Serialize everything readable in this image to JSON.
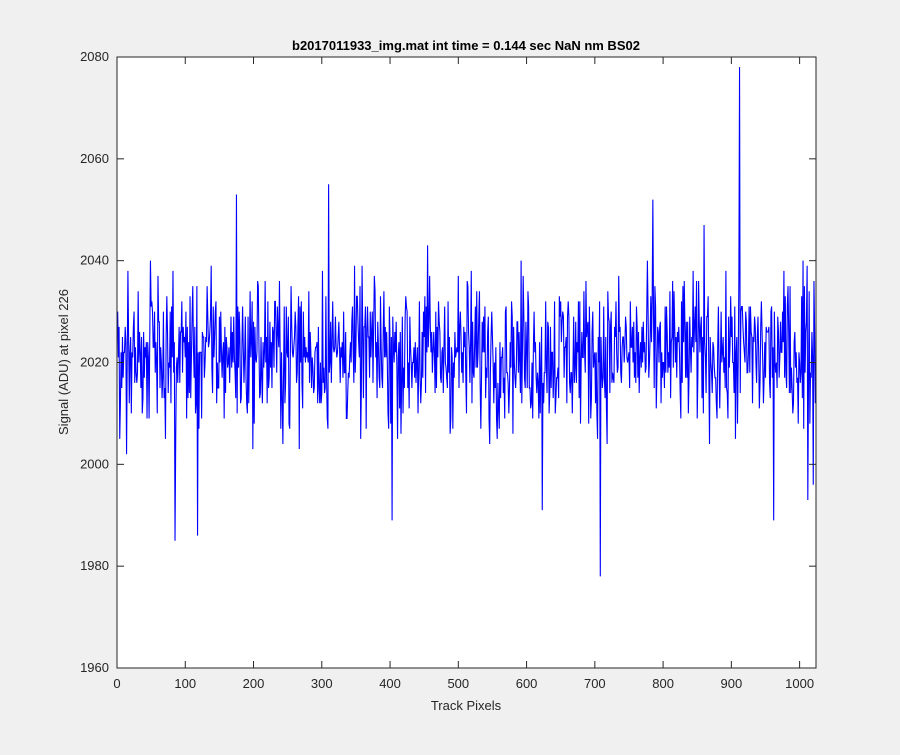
{
  "chart_data": {
    "type": "line",
    "title": "b2017011933_img.mat int time = 0.144 sec  NaN nm BS02",
    "xlabel": "Track Pixels",
    "ylabel": "Signal (ADU) at pixel 226",
    "xlim": [
      0,
      1024
    ],
    "ylim": [
      1960,
      2080
    ],
    "xticks": [
      0,
      100,
      200,
      300,
      400,
      500,
      600,
      700,
      800,
      900,
      1000
    ],
    "yticks": [
      1960,
      1980,
      2000,
      2020,
      2040,
      2060,
      2080
    ],
    "xtick_labels": [
      "0",
      "100",
      "200",
      "300",
      "400",
      "500",
      "600",
      "700",
      "800",
      "900",
      "1000"
    ],
    "ytick_labels": [
      "1960",
      "1980",
      "2000",
      "2020",
      "2040",
      "2060",
      "2080"
    ],
    "grid": false,
    "line_color": "#0000ff",
    "n_points": 1024,
    "mean_level": 2022,
    "noise_range": [
      2000,
      2040
    ],
    "notable_points": [
      {
        "x": 85,
        "y": 1985
      },
      {
        "x": 118,
        "y": 1986
      },
      {
        "x": 175,
        "y": 2053
      },
      {
        "x": 310,
        "y": 2055
      },
      {
        "x": 403,
        "y": 1989
      },
      {
        "x": 455,
        "y": 2043
      },
      {
        "x": 623,
        "y": 1991
      },
      {
        "x": 708,
        "y": 1978
      },
      {
        "x": 785,
        "y": 2052
      },
      {
        "x": 860,
        "y": 2047
      },
      {
        "x": 912,
        "y": 2078
      },
      {
        "x": 962,
        "y": 1989
      },
      {
        "x": 1005,
        "y": 2040
      },
      {
        "x": 1012,
        "y": 1993
      },
      {
        "x": 1020,
        "y": 1996
      }
    ]
  }
}
